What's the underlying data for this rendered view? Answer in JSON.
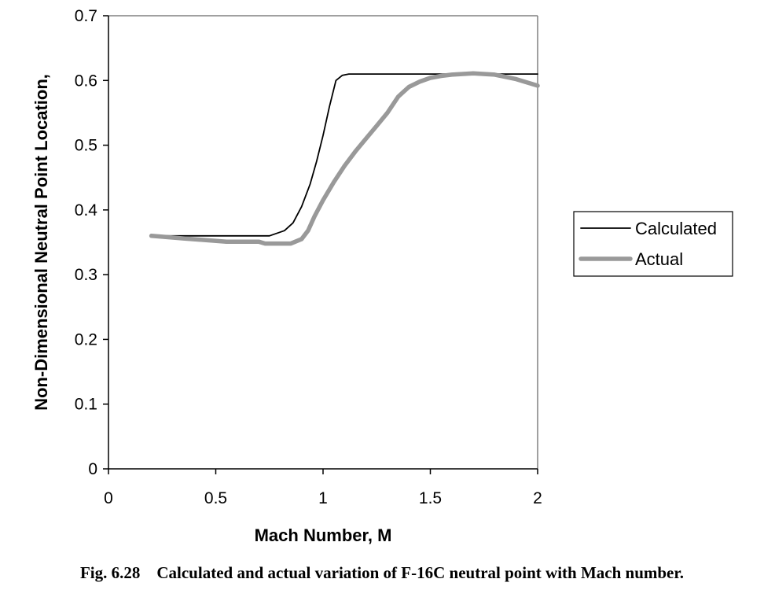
{
  "chart_data": {
    "type": "line",
    "xlabel": "Mach Number, M",
    "ylabel": "Non-Dimensional Neutral Point Location,",
    "xlim": [
      0,
      2
    ],
    "ylim": [
      0,
      0.7
    ],
    "x_ticks": [
      "0",
      "0.5",
      "1",
      "1.5",
      "2"
    ],
    "y_ticks": [
      "0",
      "0.1",
      "0.2",
      "0.3",
      "0.4",
      "0.5",
      "0.6",
      "0.7"
    ],
    "grid": false,
    "legend_position": "right",
    "series": [
      {
        "name": "Calculated",
        "color": "#000000",
        "points": [
          [
            0.2,
            0.36
          ],
          [
            0.75,
            0.36
          ],
          [
            0.82,
            0.368
          ],
          [
            0.86,
            0.38
          ],
          [
            0.9,
            0.405
          ],
          [
            0.94,
            0.44
          ],
          [
            0.97,
            0.475
          ],
          [
            1.0,
            0.515
          ],
          [
            1.03,
            0.56
          ],
          [
            1.06,
            0.6
          ],
          [
            1.09,
            0.608
          ],
          [
            1.12,
            0.61
          ],
          [
            1.5,
            0.61
          ],
          [
            2.0,
            0.61
          ]
        ]
      },
      {
        "name": "Actual",
        "color": "#999999",
        "points": [
          [
            0.2,
            0.36
          ],
          [
            0.35,
            0.356
          ],
          [
            0.55,
            0.351
          ],
          [
            0.7,
            0.351
          ],
          [
            0.73,
            0.348
          ],
          [
            0.85,
            0.348
          ],
          [
            0.9,
            0.355
          ],
          [
            0.93,
            0.368
          ],
          [
            0.96,
            0.39
          ],
          [
            1.0,
            0.415
          ],
          [
            1.05,
            0.443
          ],
          [
            1.1,
            0.468
          ],
          [
            1.15,
            0.49
          ],
          [
            1.2,
            0.51
          ],
          [
            1.25,
            0.53
          ],
          [
            1.3,
            0.55
          ],
          [
            1.35,
            0.575
          ],
          [
            1.4,
            0.59
          ],
          [
            1.45,
            0.598
          ],
          [
            1.5,
            0.604
          ],
          [
            1.55,
            0.607
          ],
          [
            1.6,
            0.609
          ],
          [
            1.7,
            0.611
          ],
          [
            1.8,
            0.609
          ],
          [
            1.9,
            0.602
          ],
          [
            2.0,
            0.592
          ]
        ]
      }
    ]
  },
  "caption": "Fig. 6.28    Calculated and actual variation of F-16C neutral point with Mach number."
}
